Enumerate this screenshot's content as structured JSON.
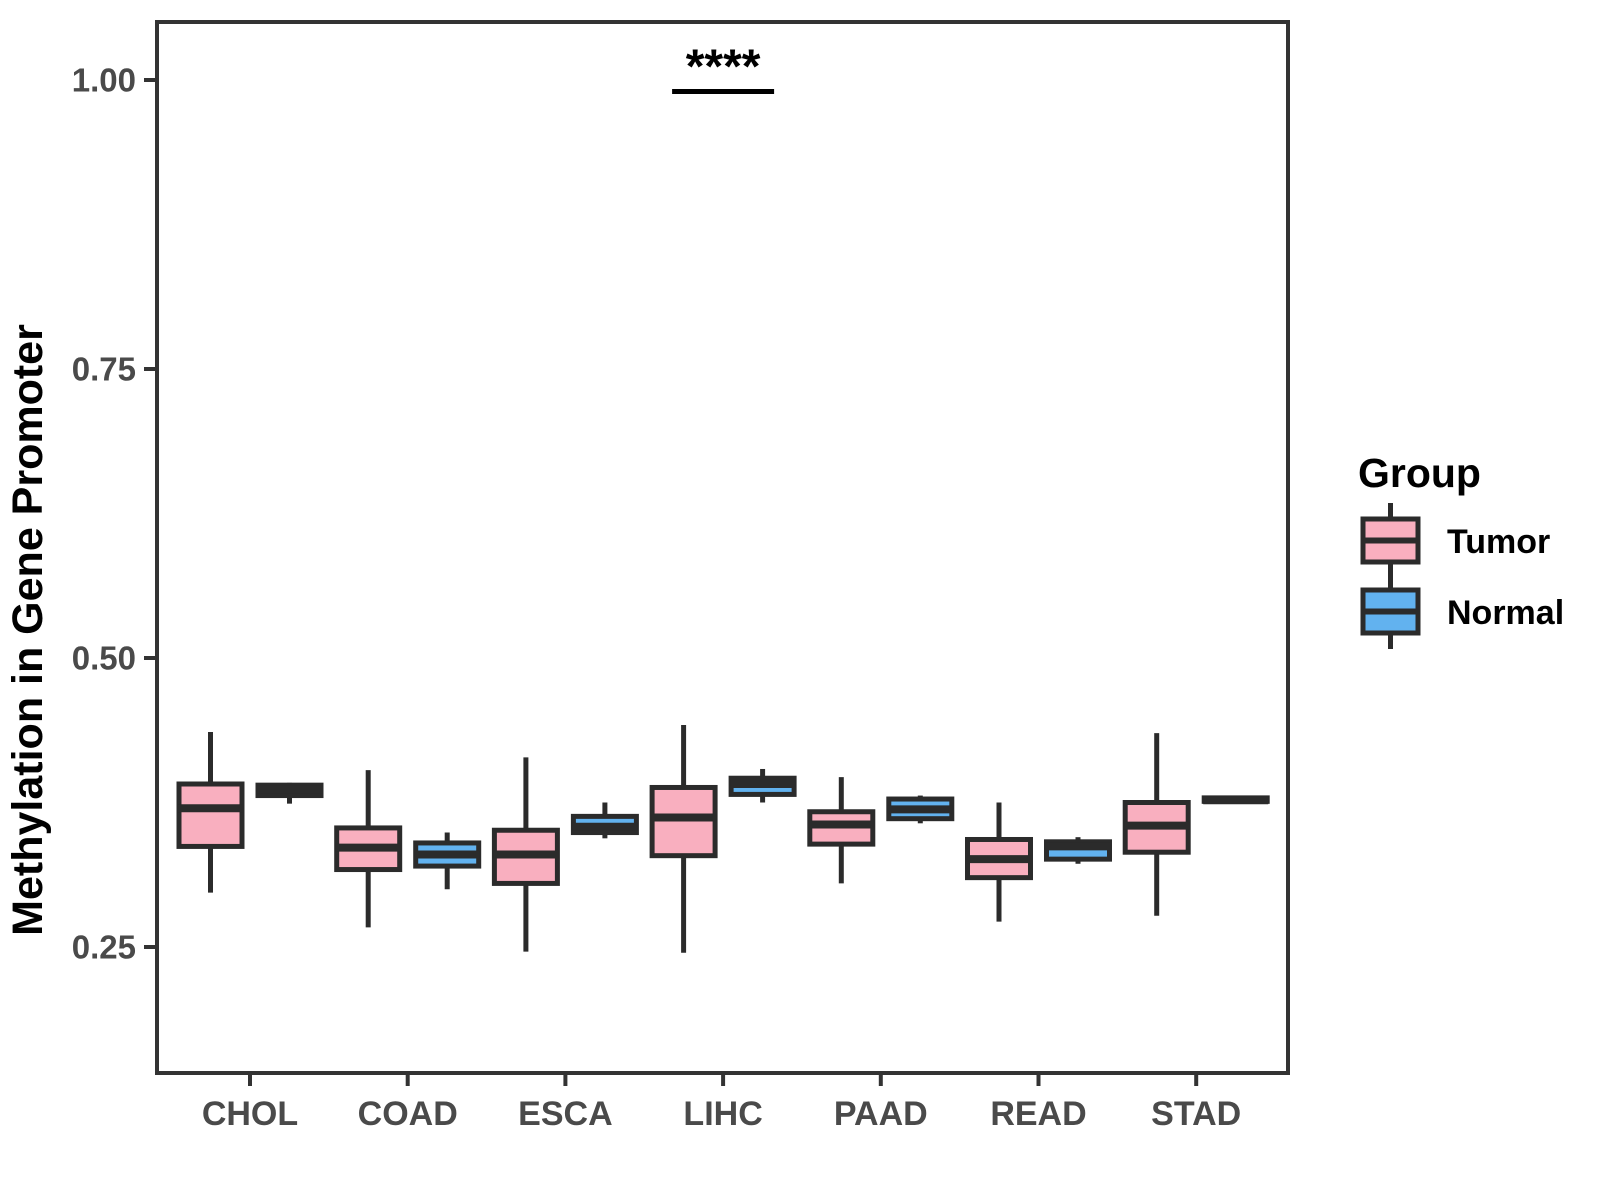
{
  "chart_data": {
    "type": "boxplot",
    "title": "",
    "xlabel": "",
    "ylabel": "Methylation in Gene Promoter",
    "categories": [
      "CHOL",
      "COAD",
      "ESCA",
      "LIHC",
      "PAAD",
      "READ",
      "STAD"
    ],
    "yticks": [
      0.25,
      0.5,
      0.75,
      1.0
    ],
    "ytick_labels": [
      "0.25",
      "0.50",
      "0.75",
      "1.00"
    ],
    "ylim": [
      0.14,
      1.05
    ],
    "grid": "off",
    "series": [
      {
        "name": "Tumor",
        "color": "#F9AFBF",
        "boxes": [
          {
            "category": "CHOL",
            "lower": 0.297,
            "q1": 0.337,
            "median": 0.37,
            "q3": 0.391,
            "upper": 0.436
          },
          {
            "category": "COAD",
            "lower": 0.267,
            "q1": 0.317,
            "median": 0.336,
            "q3": 0.353,
            "upper": 0.403
          },
          {
            "category": "ESCA",
            "lower": 0.246,
            "q1": 0.305,
            "median": 0.33,
            "q3": 0.351,
            "upper": 0.414
          },
          {
            "category": "LIHC",
            "lower": 0.245,
            "q1": 0.329,
            "median": 0.362,
            "q3": 0.388,
            "upper": 0.442
          },
          {
            "category": "PAAD",
            "lower": 0.305,
            "q1": 0.339,
            "median": 0.356,
            "q3": 0.367,
            "upper": 0.397
          },
          {
            "category": "READ",
            "lower": 0.272,
            "q1": 0.31,
            "median": 0.326,
            "q3": 0.343,
            "upper": 0.375
          },
          {
            "category": "STAD",
            "lower": 0.277,
            "q1": 0.332,
            "median": 0.355,
            "q3": 0.375,
            "upper": 0.435
          }
        ]
      },
      {
        "name": "Normal",
        "color": "#62B2EF",
        "boxes": [
          {
            "category": "CHOL",
            "lower": 0.374,
            "q1": 0.381,
            "median": 0.386,
            "q3": 0.39,
            "upper": 0.392
          },
          {
            "category": "COAD",
            "lower": 0.3,
            "q1": 0.32,
            "median": 0.33,
            "q3": 0.34,
            "upper": 0.349
          },
          {
            "category": "ESCA",
            "lower": 0.344,
            "q1": 0.349,
            "median": 0.354,
            "q3": 0.363,
            "upper": 0.375
          },
          {
            "category": "LIHC",
            "lower": 0.375,
            "q1": 0.382,
            "median": 0.391,
            "q3": 0.396,
            "upper": 0.404
          },
          {
            "category": "PAAD",
            "lower": 0.357,
            "q1": 0.361,
            "median": 0.369,
            "q3": 0.378,
            "upper": 0.381
          },
          {
            "category": "READ",
            "lower": 0.322,
            "q1": 0.326,
            "median": 0.337,
            "q3": 0.341,
            "upper": 0.345
          },
          {
            "category": "STAD",
            "lower": 0.374,
            "q1": 0.376,
            "median": 0.377,
            "q3": 0.379,
            "upper": 0.38
          }
        ]
      }
    ],
    "legend": {
      "title": "Group",
      "position": "right",
      "entries": [
        {
          "label": "Tumor",
          "color": "#F9AFBF"
        },
        {
          "label": "Normal",
          "color": "#62B2EF"
        }
      ]
    },
    "annotations": [
      {
        "text": "****",
        "category": "LIHC",
        "bar_y": 0.99,
        "text_y": 1.005,
        "spans": "Tumor-to-Normal"
      }
    ],
    "style": {
      "box_stroke_color": "#2B2B2B",
      "panel_border_color": "#333333",
      "tick_label_color": "#4a4a4a"
    }
  }
}
